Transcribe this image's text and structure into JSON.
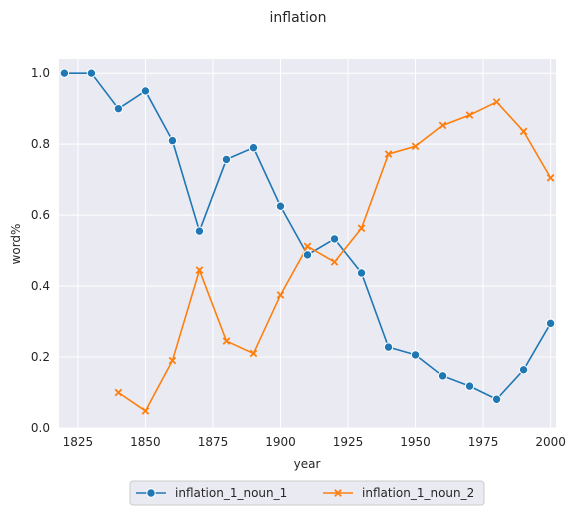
{
  "chart_data": {
    "type": "line",
    "title": "inflation",
    "xlabel": "year",
    "ylabel": "word%",
    "xlim": [
      1818,
      2002
    ],
    "ylim": [
      0,
      1.04
    ],
    "xticks": [
      1825,
      1850,
      1875,
      1900,
      1925,
      1950,
      1975,
      2000
    ],
    "yticks": [
      0.0,
      0.2,
      0.4,
      0.6,
      0.8,
      1.0
    ],
    "grid": true,
    "legend_position": "bottom-center",
    "series": [
      {
        "name": "inflation_1_noun_1",
        "color": "#1f77b4",
        "marker": "circle",
        "x": [
          1820,
          1830,
          1840,
          1850,
          1860,
          1870,
          1880,
          1890,
          1900,
          1910,
          1920,
          1930,
          1940,
          1950,
          1960,
          1970,
          1980,
          1990,
          2000
        ],
        "y": [
          1.0,
          1.0,
          0.9,
          0.95,
          0.81,
          0.555,
          0.757,
          0.79,
          0.625,
          0.488,
          0.533,
          0.437,
          0.228,
          0.206,
          0.147,
          0.118,
          0.081,
          0.164,
          0.295
        ]
      },
      {
        "name": "inflation_1_noun_2",
        "color": "#ff7f0e",
        "marker": "x",
        "x": [
          1840,
          1850,
          1860,
          1870,
          1880,
          1890,
          1900,
          1910,
          1920,
          1930,
          1940,
          1950,
          1960,
          1970,
          1980,
          1990,
          2000
        ],
        "y": [
          0.1,
          0.048,
          0.19,
          0.445,
          0.245,
          0.21,
          0.375,
          0.512,
          0.468,
          0.563,
          0.772,
          0.794,
          0.853,
          0.882,
          0.919,
          0.836,
          0.705
        ]
      }
    ]
  }
}
